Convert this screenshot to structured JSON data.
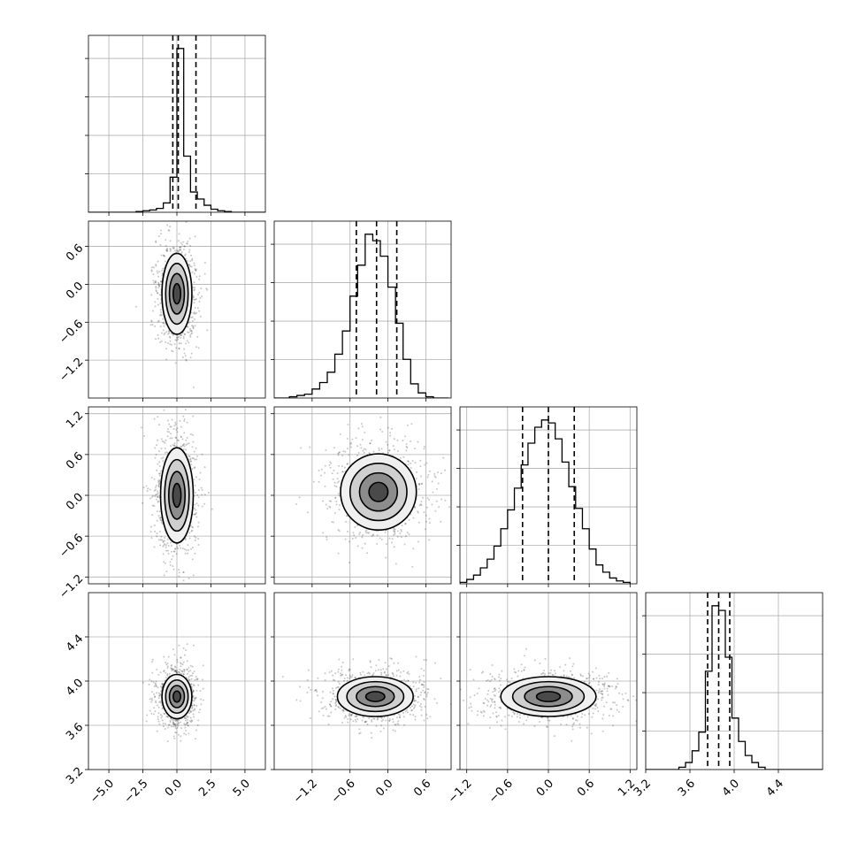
{
  "chart_data": {
    "type": "corner",
    "grid": true,
    "parameters": [
      {
        "range": [
          -6.5,
          6.5
        ],
        "ticks": [
          -5.0,
          -2.5,
          0.0,
          2.5,
          5.0
        ],
        "tick_labels": [
          "−5.0",
          "−2.5",
          "0.0",
          "2.5",
          "5.0"
        ],
        "quantiles": [
          -0.3,
          0.1,
          1.4
        ],
        "hist": {
          "edges": [
            -6.5,
            -6.0,
            -5.5,
            -5.0,
            -4.5,
            -4.0,
            -3.5,
            -3.0,
            -2.5,
            -2.0,
            -1.5,
            -1.0,
            -0.5,
            0.0,
            0.5,
            1.0,
            1.5,
            2.0,
            2.5,
            3.0,
            3.5,
            4.0,
            4.5,
            5.0,
            5.5,
            6.0,
            6.5
          ],
          "counts": [
            0,
            0,
            0,
            0,
            0,
            0,
            0,
            1,
            2,
            3,
            5,
            12,
            45,
            210,
            72,
            26,
            17,
            9,
            4,
            2,
            1,
            0,
            0,
            0,
            0,
            0
          ]
        }
      },
      {
        "range": [
          -1.8,
          1.0
        ],
        "ticks": [
          -1.2,
          -0.6,
          0.0,
          0.6
        ],
        "tick_labels": [
          "−1.2",
          "−0.6",
          "0.0",
          "0.6"
        ],
        "quantiles": [
          -0.5,
          -0.18,
          0.14
        ],
        "hist": {
          "edges": [
            -1.8,
            -1.68,
            -1.56,
            -1.44,
            -1.32,
            -1.2,
            -1.08,
            -0.96,
            -0.84,
            -0.72,
            -0.6,
            -0.48,
            -0.36,
            -0.24,
            -0.12,
            0.0,
            0.12,
            0.24,
            0.36,
            0.48,
            0.6,
            0.72,
            0.84,
            0.96
          ],
          "counts": [
            0,
            0,
            1,
            2,
            3,
            7,
            12,
            20,
            34,
            52,
            79,
            103,
            127,
            122,
            110,
            86,
            58,
            30,
            11,
            4,
            1,
            0,
            0
          ]
        }
      },
      {
        "range": [
          -1.3,
          1.3
        ],
        "ticks": [
          -1.2,
          -0.6,
          0.0,
          0.6,
          1.2
        ],
        "tick_labels": [
          "−1.2",
          "−0.6",
          "0.0",
          "0.6",
          "1.2"
        ],
        "quantiles": [
          -0.38,
          0.0,
          0.38
        ],
        "hist": {
          "edges": [
            -1.3,
            -1.2,
            -1.1,
            -1.0,
            -0.9,
            -0.8,
            -0.7,
            -0.6,
            -0.5,
            -0.4,
            -0.3,
            -0.2,
            -0.1,
            0.0,
            0.1,
            0.2,
            0.3,
            0.4,
            0.5,
            0.6,
            0.7,
            0.8,
            0.9,
            1.0,
            1.1,
            1.2
          ],
          "counts": [
            1,
            3,
            6,
            11,
            17,
            26,
            38,
            51,
            66,
            82,
            97,
            108,
            113,
            111,
            100,
            84,
            67,
            52,
            38,
            24,
            13,
            8,
            4,
            2,
            1
          ]
        }
      },
      {
        "range": [
          3.2,
          4.8
        ],
        "ticks": [
          3.2,
          3.6,
          4.0,
          4.4
        ],
        "tick_labels": [
          "3.2",
          "3.6",
          "4.0",
          "4.4"
        ],
        "quantiles": [
          3.76,
          3.86,
          3.96
        ],
        "hist": {
          "edges": [
            3.2,
            3.26,
            3.32,
            3.38,
            3.44,
            3.5,
            3.56,
            3.62,
            3.68,
            3.74,
            3.8,
            3.86,
            3.92,
            3.98,
            4.04,
            4.1,
            4.16,
            4.22,
            4.28,
            4.34,
            4.4,
            4.46,
            4.52,
            4.58,
            4.64,
            4.7,
            4.76,
            4.8
          ],
          "counts": [
            0,
            0,
            0,
            0,
            0,
            1,
            3,
            8,
            16,
            42,
            70,
            68,
            48,
            22,
            12,
            6,
            3,
            1,
            0,
            0,
            0,
            0,
            0,
            0,
            0,
            0,
            0
          ]
        }
      }
    ],
    "pairs": [
      {
        "i": 1,
        "j": 0,
        "center": [
          0.0,
          -0.15
        ],
        "sigma": [
          0.55,
          0.32
        ],
        "rotation_deg": 0
      },
      {
        "i": 2,
        "j": 0,
        "center": [
          0.0,
          0.0
        ],
        "sigma": [
          0.6,
          0.35
        ],
        "rotation_deg": 0
      },
      {
        "i": 2,
        "j": 1,
        "center": [
          -0.15,
          0.05
        ],
        "sigma": [
          0.3,
          0.28
        ],
        "rotation_deg": 0
      },
      {
        "i": 3,
        "j": 0,
        "center": [
          0.0,
          3.86
        ],
        "sigma": [
          0.55,
          0.1
        ],
        "rotation_deg": 0
      },
      {
        "i": 3,
        "j": 1,
        "center": [
          -0.2,
          3.86
        ],
        "sigma": [
          0.3,
          0.09
        ],
        "rotation_deg": 0
      },
      {
        "i": 3,
        "j": 2,
        "center": [
          0.0,
          3.86
        ],
        "sigma": [
          0.35,
          0.09
        ],
        "rotation_deg": 0
      }
    ],
    "contour_levels_sigma": [
      0.5,
      1.0,
      1.5,
      2.0
    ]
  }
}
